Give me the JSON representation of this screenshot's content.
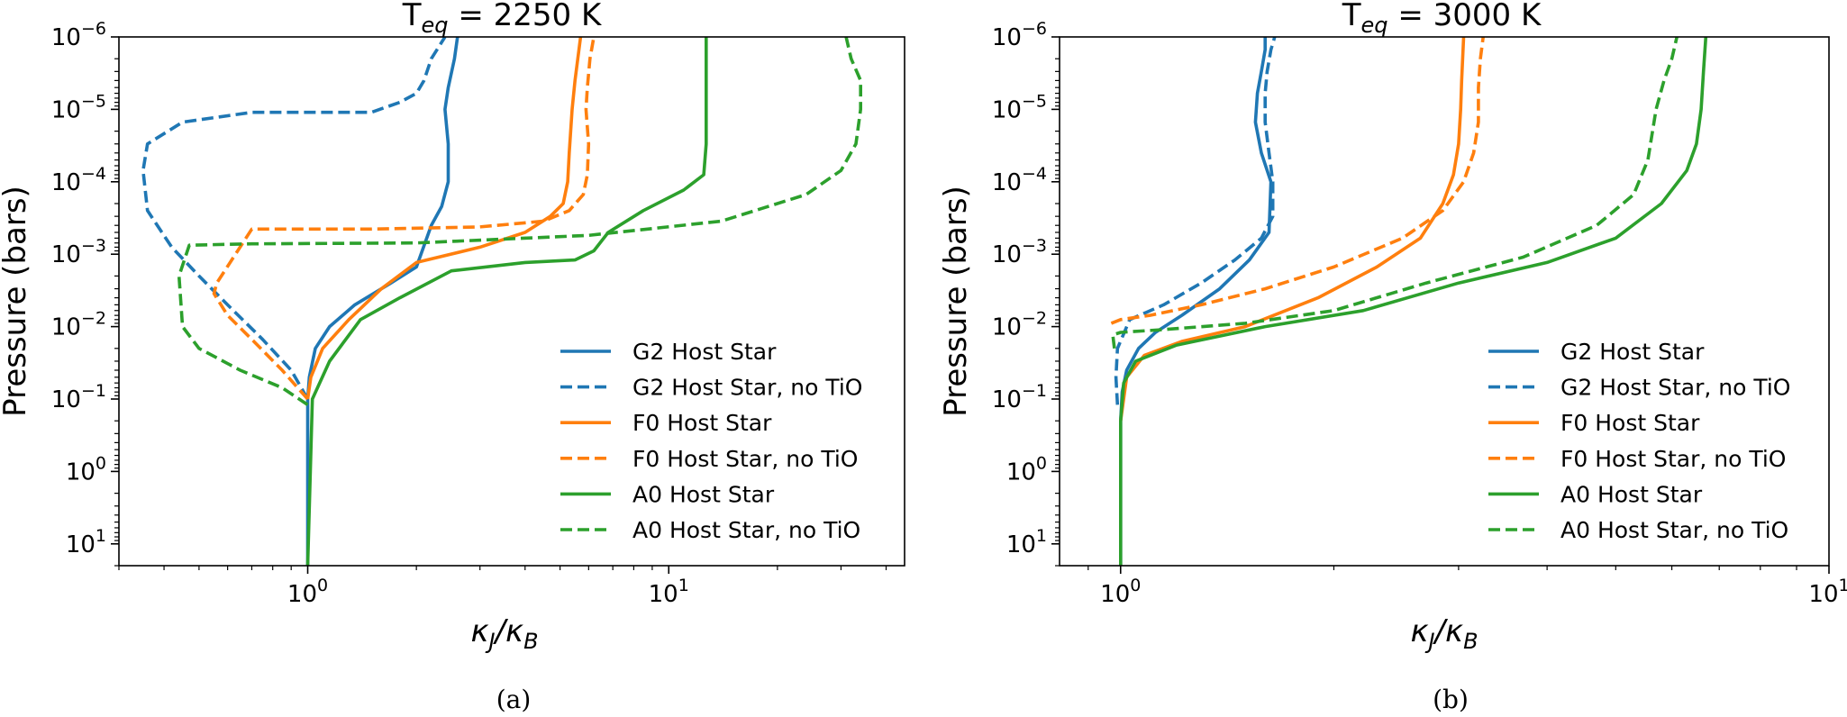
{
  "chart_data": [
    {
      "type": "line",
      "title_base": "T",
      "title_sub": "eq",
      "title_rest": " = 2250 K",
      "caption": "(a)",
      "xlabel_main": "κ",
      "xlabel_sub1": "J",
      "xlabel_sep": "/κ",
      "xlabel_sub2": "B",
      "ylabel": "Pressure (bars)",
      "xscale": "log",
      "yscale": "log",
      "xlim": [
        0.3,
        45
      ],
      "ylim": [
        20,
        1e-06
      ],
      "y_ticks": [
        {
          "base": "10",
          "exp": "−6",
          "value": 1e-06
        },
        {
          "base": "10",
          "exp": "−5",
          "value": 1e-05
        },
        {
          "base": "10",
          "exp": "−4",
          "value": 0.0001
        },
        {
          "base": "10",
          "exp": "−3",
          "value": 0.001
        },
        {
          "base": "10",
          "exp": "−2",
          "value": 0.01
        },
        {
          "base": "10",
          "exp": "−1",
          "value": 0.1
        },
        {
          "base": "10",
          "exp": "0",
          "value": 1
        },
        {
          "base": "10",
          "exp": "1",
          "value": 10
        }
      ],
      "x_ticks": [
        {
          "base": "10",
          "exp": "0",
          "value": 1
        },
        {
          "base": "10",
          "exp": "1",
          "value": 10
        }
      ],
      "legend_position": "lower-right",
      "series": [
        {
          "name": "G2 Host Star",
          "color": "#1f77b4",
          "dashed": false,
          "x": [
            1.0,
            1.0,
            1.01,
            1.05,
            1.15,
            1.35,
            1.7,
            2.0,
            2.2,
            2.35,
            2.45,
            2.45,
            2.4,
            2.45,
            2.55,
            2.6
          ],
          "y": [
            20,
            0.1,
            0.05,
            0.02,
            0.01,
            0.005,
            0.0025,
            0.0015,
            0.0004,
            0.00022,
            0.0001,
            3e-05,
            1e-05,
            5e-06,
            2e-06,
            1e-06
          ]
        },
        {
          "name": "G2 Host Star, no TiO",
          "color": "#1f77b4",
          "dashed": true,
          "x": [
            1.0,
            0.9,
            0.75,
            0.6,
            0.5,
            0.42,
            0.36,
            0.35,
            0.36,
            0.45,
            0.7,
            1.1,
            1.5,
            1.8,
            2.0,
            2.1,
            2.2,
            2.4
          ],
          "y": [
            0.1,
            0.04,
            0.015,
            0.005,
            0.002,
            0.0008,
            0.00025,
            7e-05,
            3e-05,
            1.5e-05,
            1.1e-05,
            1.1e-05,
            1.1e-05,
            8e-06,
            6e-06,
            4e-06,
            2e-06,
            1e-06
          ]
        },
        {
          "name": "F0 Host Star",
          "color": "#ff7f0e",
          "dashed": false,
          "x": [
            1.0,
            1.02,
            1.1,
            1.3,
            1.6,
            2.0,
            3.0,
            4.0,
            4.7,
            5.1,
            5.25,
            5.3,
            5.4,
            5.5,
            5.6,
            5.7
          ],
          "y": [
            0.1,
            0.05,
            0.02,
            0.008,
            0.003,
            0.0013,
            0.0008,
            0.0005,
            0.0003,
            0.0002,
            0.0001,
            4e-05,
            1e-05,
            4e-06,
            2e-06,
            1e-06
          ]
        },
        {
          "name": "F0 Host Star, no TiO",
          "color": "#ff7f0e",
          "dashed": true,
          "x": [
            1.0,
            0.85,
            0.7,
            0.6,
            0.55,
            0.56,
            0.7,
            1.5,
            3.0,
            4.5,
            5.3,
            5.8,
            5.95,
            6.0,
            5.9,
            5.95,
            6.05,
            6.2
          ],
          "y": [
            0.1,
            0.04,
            0.015,
            0.007,
            0.0035,
            0.0025,
            0.00045,
            0.00045,
            0.00042,
            0.00035,
            0.00025,
            0.00015,
            8e-05,
            3e-05,
            1e-05,
            5e-06,
            2e-06,
            1e-06
          ]
        },
        {
          "name": "A0 Host Star",
          "color": "#2ca02c",
          "dashed": false,
          "x": [
            1.0,
            1.03,
            1.15,
            1.4,
            1.8,
            2.5,
            4.0,
            5.5,
            6.2,
            6.8,
            8.5,
            11.0,
            12.5,
            12.7,
            12.7,
            12.7
          ],
          "y": [
            20,
            0.1,
            0.03,
            0.008,
            0.004,
            0.0017,
            0.0013,
            0.0012,
            0.0009,
            0.0005,
            0.00025,
            0.00013,
            8e-05,
            3e-05,
            1e-05,
            1e-06
          ]
        },
        {
          "name": "A0 Host Star, no TiO",
          "color": "#2ca02c",
          "dashed": true,
          "x": [
            1.0,
            0.85,
            0.65,
            0.5,
            0.45,
            0.44,
            0.47,
            0.7,
            2.0,
            6.0,
            14.0,
            24.0,
            30.0,
            33.0,
            34.0,
            34.0,
            32.0,
            31.0
          ],
          "y": [
            0.12,
            0.07,
            0.04,
            0.02,
            0.01,
            0.002,
            0.00075,
            0.00072,
            0.0007,
            0.00055,
            0.00035,
            0.00015,
            7e-05,
            3e-05,
            1e-05,
            4e-06,
            2e-06,
            1e-06
          ]
        }
      ]
    },
    {
      "type": "line",
      "title_base": "T",
      "title_sub": "eq",
      "title_rest": " = 3000 K",
      "caption": "(b)",
      "xlabel_main": "κ",
      "xlabel_sub1": "J",
      "xlabel_sep": "/κ",
      "xlabel_sub2": "B",
      "ylabel": "Pressure (bars)",
      "xscale": "log",
      "yscale": "log",
      "xlim": [
        0.82,
        10
      ],
      "ylim": [
        20,
        1e-06
      ],
      "y_ticks": [
        {
          "base": "10",
          "exp": "−6",
          "value": 1e-06
        },
        {
          "base": "10",
          "exp": "−5",
          "value": 1e-05
        },
        {
          "base": "10",
          "exp": "−4",
          "value": 0.0001
        },
        {
          "base": "10",
          "exp": "−3",
          "value": 0.001
        },
        {
          "base": "10",
          "exp": "−2",
          "value": 0.01
        },
        {
          "base": "10",
          "exp": "−1",
          "value": 0.1
        },
        {
          "base": "10",
          "exp": "0",
          "value": 1
        },
        {
          "base": "10",
          "exp": "1",
          "value": 10
        }
      ],
      "x_ticks": [
        {
          "base": "10",
          "exp": "0",
          "value": 1
        },
        {
          "base": "10",
          "exp": "1",
          "value": 10
        }
      ],
      "legend_position": "lower-right",
      "series": [
        {
          "name": "G2 Host Star",
          "color": "#1f77b4",
          "dashed": false,
          "x": [
            1.0,
            1.0,
            1.005,
            1.02,
            1.06,
            1.12,
            1.22,
            1.38,
            1.52,
            1.62,
            1.63,
            1.58,
            1.55,
            1.56,
            1.58,
            1.6,
            1.6
          ],
          "y": [
            20,
            0.2,
            0.08,
            0.04,
            0.02,
            0.012,
            0.007,
            0.003,
            0.0012,
            0.0005,
            0.0001,
            4e-05,
            1.5e-05,
            6e-06,
            3e-06,
            1.5e-06,
            1e-06
          ]
        },
        {
          "name": "G2 Host Star, no TiO",
          "color": "#1f77b4",
          "dashed": true,
          "x": [
            0.99,
            0.985,
            0.99,
            1.03,
            1.15,
            1.3,
            1.45,
            1.58,
            1.64,
            1.64,
            1.62,
            1.6,
            1.6,
            1.61,
            1.63,
            1.65
          ],
          "y": [
            0.12,
            0.05,
            0.02,
            0.008,
            0.005,
            0.0025,
            0.0012,
            0.0006,
            0.0003,
            0.0001,
            4e-05,
            1.5e-05,
            6e-06,
            3e-06,
            1.5e-06,
            1e-06
          ]
        },
        {
          "name": "F0 Host Star",
          "color": "#ff7f0e",
          "dashed": false,
          "x": [
            1.0,
            1.02,
            1.08,
            1.22,
            1.5,
            1.9,
            2.3,
            2.65,
            2.85,
            2.95,
            3.0,
            3.02,
            3.03,
            3.05
          ],
          "y": [
            0.2,
            0.05,
            0.025,
            0.016,
            0.01,
            0.004,
            0.0015,
            0.0006,
            0.0002,
            8e-05,
            3e-05,
            1e-05,
            4e-06,
            1e-06
          ]
        },
        {
          "name": "F0 Host Star, no TiO",
          "color": "#ff7f0e",
          "dashed": true,
          "x": [
            0.97,
            1.0,
            1.1,
            1.3,
            1.6,
            2.0,
            2.5,
            2.85,
            3.05,
            3.15,
            3.2,
            3.2,
            3.22,
            3.25
          ],
          "y": [
            0.009,
            0.008,
            0.007,
            0.005,
            0.003,
            0.0015,
            0.0006,
            0.00025,
            0.0001,
            4e-05,
            1.5e-05,
            5e-06,
            2e-06,
            1e-06
          ]
        },
        {
          "name": "A0 Host Star",
          "color": "#2ca02c",
          "dashed": false,
          "x": [
            1.0,
            1.0,
            1.01,
            1.05,
            1.2,
            1.6,
            2.2,
            3.0,
            4.0,
            5.0,
            5.8,
            6.3,
            6.5,
            6.6,
            6.65,
            6.7
          ],
          "y": [
            20,
            0.2,
            0.06,
            0.03,
            0.018,
            0.01,
            0.006,
            0.0025,
            0.0013,
            0.0006,
            0.0002,
            7e-05,
            3e-05,
            1e-05,
            3e-06,
            1e-06
          ]
        },
        {
          "name": "A0 Host Star, no TiO",
          "color": "#2ca02c",
          "dashed": true,
          "x": [
            0.98,
            0.975,
            1.0,
            1.15,
            1.5,
            2.0,
            2.7,
            3.7,
            4.7,
            5.3,
            5.55,
            5.7,
            5.85,
            6.0,
            6.1
          ],
          "y": [
            0.02,
            0.013,
            0.012,
            0.011,
            0.009,
            0.006,
            0.0025,
            0.0011,
            0.0004,
            0.00015,
            5e-05,
            1e-05,
            4e-06,
            2e-06,
            1e-06
          ]
        }
      ]
    }
  ]
}
